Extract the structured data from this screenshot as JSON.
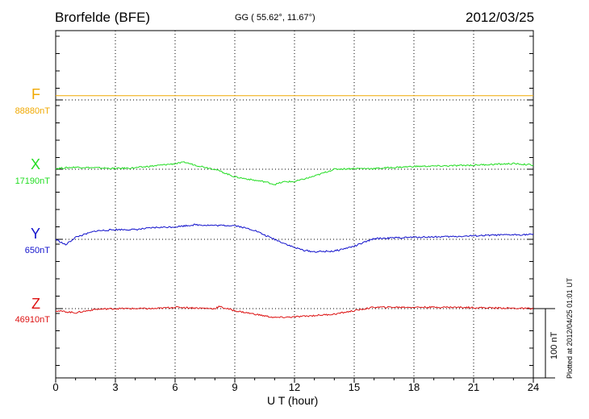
{
  "header": {
    "station": "Brorfelde (BFE)",
    "coords": "GG ( 55.62°,  11.67°)",
    "date": "2012/03/25"
  },
  "footer": {
    "plotted": "Plotted at 2012/04/25 01:01  UT"
  },
  "colors": {
    "F": "#f0a800",
    "X": "#22dd22",
    "Y": "#1010cc",
    "Z": "#dd1010"
  },
  "chart_data": {
    "type": "line",
    "xlabel": "U T (hour)",
    "x_ticks": [
      "0",
      "3",
      "6",
      "9",
      "12",
      "15",
      "18",
      "21",
      "24"
    ],
    "xlim": [
      0,
      24
    ],
    "scale_bar": {
      "label": "100 nT",
      "nT": 100
    },
    "series": [
      {
        "name": "F",
        "baseline_label": "88880nT",
        "baseline_nT": 88880,
        "x": [
          0,
          24
        ],
        "values": [
          6,
          6
        ]
      },
      {
        "name": "X",
        "baseline_label": "17190nT",
        "x": [
          0,
          1,
          2,
          3,
          4,
          5,
          6,
          6.5,
          7,
          8,
          9,
          10,
          10.5,
          11,
          11.5,
          12,
          13,
          14,
          15,
          16,
          18,
          20,
          22,
          23,
          24
        ],
        "values": [
          1,
          3,
          2,
          1,
          2,
          5,
          8,
          10,
          6,
          0,
          -11,
          -16,
          -18,
          -22,
          -18,
          -18,
          -10,
          0,
          1,
          1,
          4,
          5,
          7,
          8,
          6
        ]
      },
      {
        "name": "Y",
        "baseline_label": "650nT",
        "x": [
          0,
          0.5,
          1,
          2,
          3,
          4,
          5,
          6,
          7,
          8,
          9,
          10,
          10.5,
          11,
          12,
          12.5,
          13,
          14,
          15,
          16,
          17,
          18,
          20,
          22,
          24
        ],
        "values": [
          0,
          -8,
          3,
          12,
          14,
          14,
          17,
          18,
          21,
          20,
          20,
          13,
          6,
          0,
          -12,
          -16,
          -18,
          -17,
          -10,
          1,
          2,
          3,
          4,
          6,
          7
        ]
      },
      {
        "name": "Z",
        "baseline_label": "46910nT",
        "x": [
          0,
          1,
          2,
          3,
          4,
          5,
          6,
          7,
          8,
          8.2,
          9,
          10,
          11,
          12,
          13,
          14,
          15,
          16,
          18,
          20,
          22,
          24
        ],
        "values": [
          -3,
          -6,
          -1,
          0,
          0,
          0,
          2,
          1,
          0,
          3,
          -3,
          -8,
          -13,
          -12,
          -10,
          -8,
          -3,
          2,
          2,
          2,
          1,
          0
        ]
      }
    ]
  }
}
